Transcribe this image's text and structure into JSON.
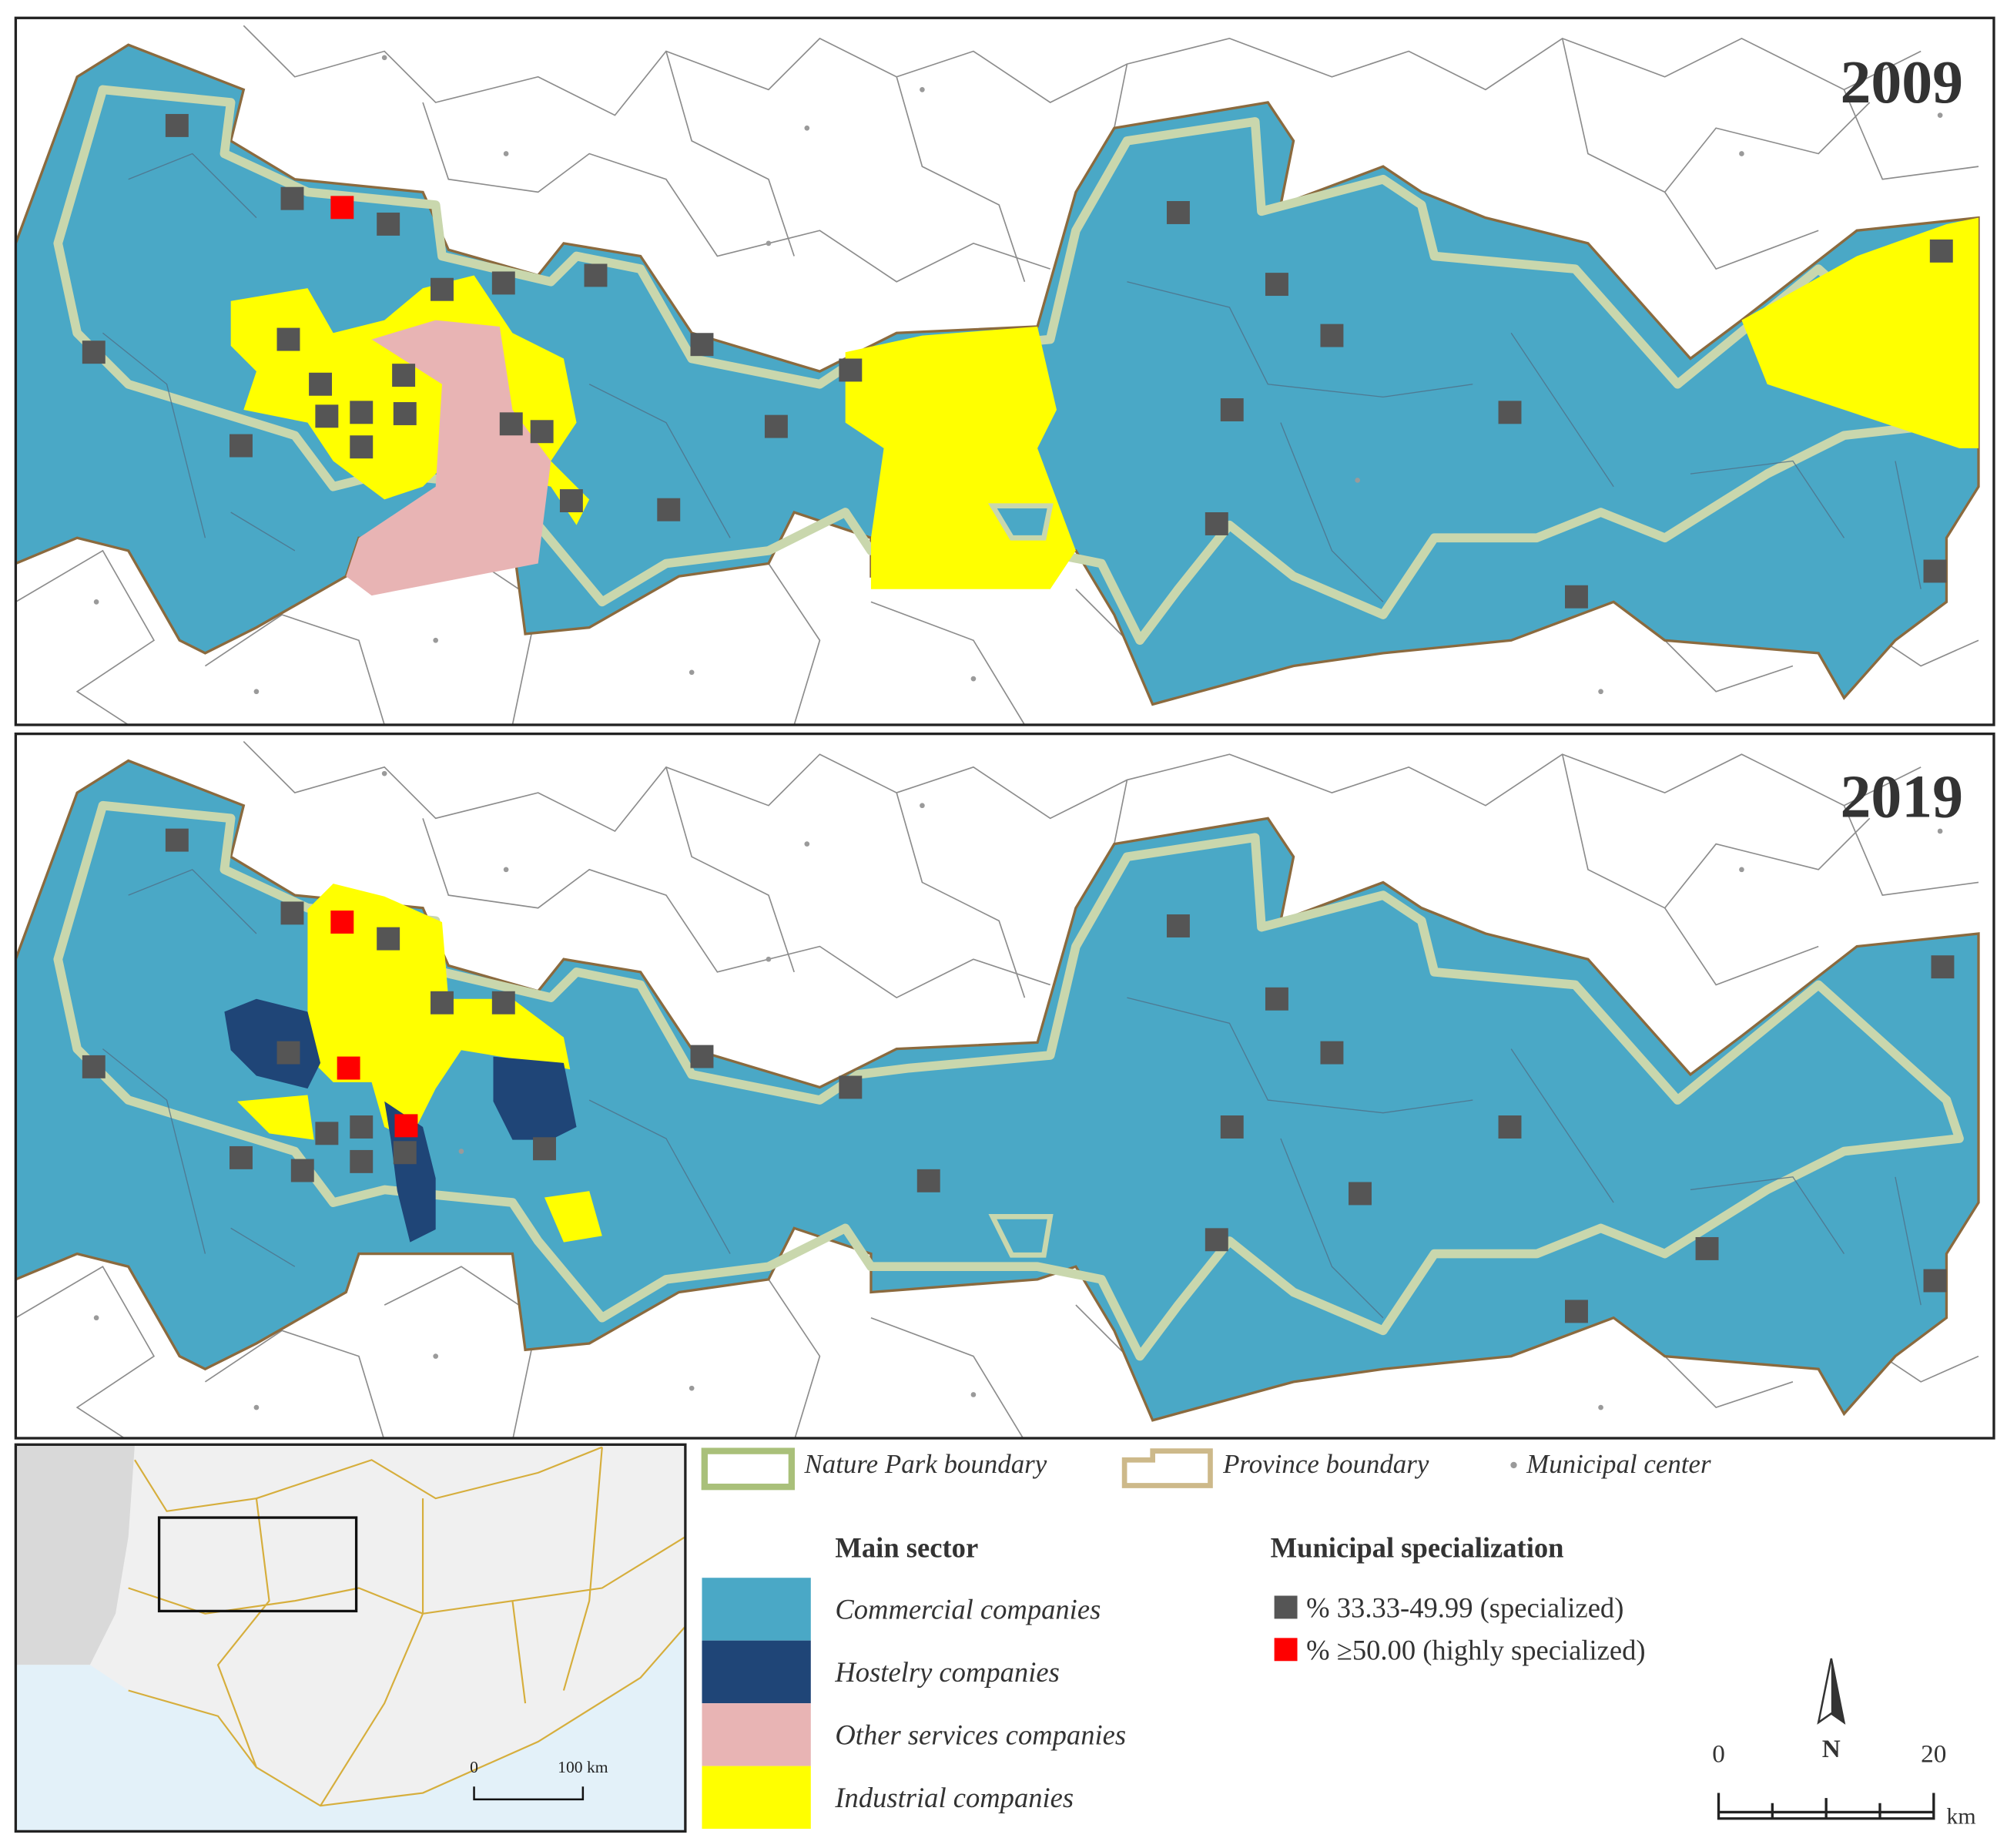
{
  "panels": [
    {
      "year": "2009"
    },
    {
      "year": "2019"
    }
  ],
  "legend": {
    "nature_park": "Nature Park boundary",
    "province": "Province boundary",
    "municipal_center": "Municipal center",
    "main_sector_title": "Main sector",
    "sectors": [
      "Commercial companies",
      "Hostelry companies",
      "Other services companies",
      "Industrial companies"
    ],
    "specialization_title": "Municipal specialization",
    "specialization": [
      "% 33.33-49.99 (specialized)",
      "% ≥50.00 (highly specialized)"
    ]
  },
  "north_arrow": "N",
  "scale_bar": {
    "start": "0",
    "end": "20",
    "unit": "km"
  },
  "inset_scale": {
    "start": "0",
    "end": "100 km"
  }
}
